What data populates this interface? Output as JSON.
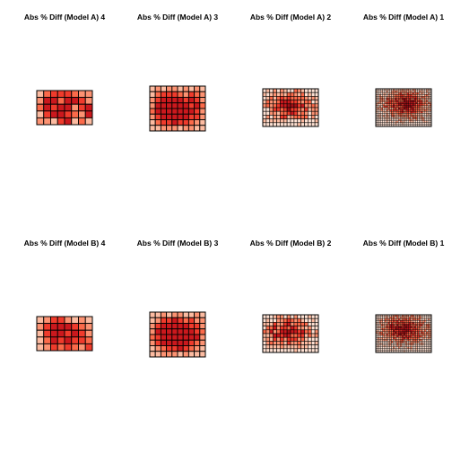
{
  "palette": {
    "light": "#fde0d2",
    "mid_light": "#fcbba1",
    "salmon": "#fc9272",
    "orange_red": "#fb6a4a",
    "red": "#ef3b2c",
    "dark_red": "#cb181d",
    "deepest": "#a50f15",
    "border": "#000000"
  },
  "chart_data": [
    {
      "type": "heatmap",
      "title": "Abs % Diff (Model A) 4",
      "legend": "none",
      "rows": 5,
      "cols": 8,
      "values": [
        [
          0.1,
          0.5,
          0.7,
          0.6,
          0.7,
          0.5,
          0.4,
          0.3
        ],
        [
          0.4,
          0.8,
          0.9,
          0.5,
          0.8,
          0.9,
          0.6,
          0.4
        ],
        [
          0.5,
          0.9,
          0.6,
          0.8,
          0.9,
          0.4,
          0.7,
          0.9
        ],
        [
          0.2,
          0.6,
          0.8,
          0.9,
          0.7,
          0.5,
          0.3,
          0.8
        ],
        [
          0.3,
          0.4,
          0.2,
          0.6,
          0.9,
          0.1,
          0.5,
          0.2
        ]
      ]
    },
    {
      "type": "heatmap",
      "title": "Abs % Diff (Model A) 3",
      "legend": "none",
      "rows": 8,
      "cols": 10,
      "values": [
        [
          0.1,
          0.3,
          0.2,
          0.4,
          0.3,
          0.2,
          0.3,
          0.1,
          0.3,
          0.2
        ],
        [
          0.2,
          0.5,
          0.7,
          0.6,
          0.7,
          0.5,
          0.4,
          0.6,
          0.5,
          0.3
        ],
        [
          0.3,
          0.7,
          0.9,
          0.8,
          0.9,
          0.9,
          0.7,
          0.8,
          0.6,
          0.4
        ],
        [
          0.4,
          0.8,
          0.9,
          0.9,
          0.8,
          0.9,
          0.9,
          0.7,
          0.8,
          0.5
        ],
        [
          0.5,
          0.9,
          0.8,
          0.9,
          0.9,
          0.8,
          0.9,
          0.9,
          0.7,
          0.4
        ],
        [
          0.3,
          0.7,
          0.9,
          0.8,
          0.9,
          0.9,
          0.8,
          0.7,
          0.6,
          0.3
        ],
        [
          0.2,
          0.5,
          0.6,
          0.7,
          0.8,
          0.6,
          0.7,
          0.5,
          0.4,
          0.2
        ],
        [
          0.1,
          0.2,
          0.3,
          0.4,
          0.3,
          0.2,
          0.4,
          0.3,
          0.2,
          0.1
        ]
      ]
    },
    {
      "type": "heatmap",
      "title": "Abs % Diff (Model A) 2",
      "legend": "none",
      "rows": 10,
      "cols": 16,
      "pattern_seed": 7,
      "center": [
        0.5,
        0.45
      ]
    },
    {
      "type": "heatmap",
      "title": "Abs % Diff (Model A) 1",
      "legend": "none",
      "rows": 20,
      "cols": 32,
      "pattern_seed": 11,
      "center": [
        0.55,
        0.4
      ]
    },
    {
      "type": "heatmap",
      "title": "Abs % Diff (Model B) 4",
      "legend": "none",
      "rows": 5,
      "cols": 8,
      "values": [
        [
          0.1,
          0.4,
          0.7,
          0.6,
          0.3,
          0.2,
          0.3,
          0.1
        ],
        [
          0.3,
          0.6,
          0.9,
          0.8,
          0.9,
          0.6,
          0.5,
          0.3
        ],
        [
          0.2,
          0.7,
          0.8,
          0.9,
          0.7,
          0.8,
          0.6,
          0.4
        ],
        [
          0.1,
          0.5,
          0.9,
          0.7,
          0.8,
          0.6,
          0.7,
          0.5
        ],
        [
          0.2,
          0.3,
          0.6,
          0.5,
          0.7,
          0.5,
          0.4,
          0.6
        ]
      ]
    },
    {
      "type": "heatmap",
      "title": "Abs % Diff (Model B) 3",
      "legend": "none",
      "rows": 8,
      "cols": 10,
      "values": [
        [
          0.1,
          0.2,
          0.3,
          0.2,
          0.4,
          0.3,
          0.2,
          0.1,
          0.3,
          0.2
        ],
        [
          0.2,
          0.4,
          0.6,
          0.7,
          0.8,
          0.6,
          0.5,
          0.6,
          0.4,
          0.3
        ],
        [
          0.3,
          0.6,
          0.9,
          0.9,
          0.8,
          0.9,
          0.8,
          0.7,
          0.6,
          0.4
        ],
        [
          0.4,
          0.8,
          0.9,
          0.8,
          0.9,
          0.9,
          0.9,
          0.8,
          0.7,
          0.5
        ],
        [
          0.5,
          0.7,
          0.9,
          0.9,
          0.9,
          0.8,
          0.9,
          0.9,
          0.8,
          0.4
        ],
        [
          0.3,
          0.6,
          0.8,
          0.9,
          0.8,
          0.9,
          0.9,
          0.7,
          0.5,
          0.3
        ],
        [
          0.2,
          0.4,
          0.5,
          0.6,
          0.7,
          0.8,
          0.6,
          0.5,
          0.4,
          0.2
        ],
        [
          0.1,
          0.2,
          0.3,
          0.3,
          0.4,
          0.2,
          0.3,
          0.2,
          0.1,
          0.1
        ]
      ]
    },
    {
      "type": "heatmap",
      "title": "Abs % Diff (Model B) 2",
      "legend": "none",
      "rows": 10,
      "cols": 16,
      "pattern_seed": 23,
      "center": [
        0.45,
        0.45
      ]
    },
    {
      "type": "heatmap",
      "title": "Abs % Diff (Model B) 1",
      "legend": "none",
      "rows": 20,
      "cols": 32,
      "pattern_seed": 31,
      "center": [
        0.5,
        0.4
      ]
    }
  ]
}
